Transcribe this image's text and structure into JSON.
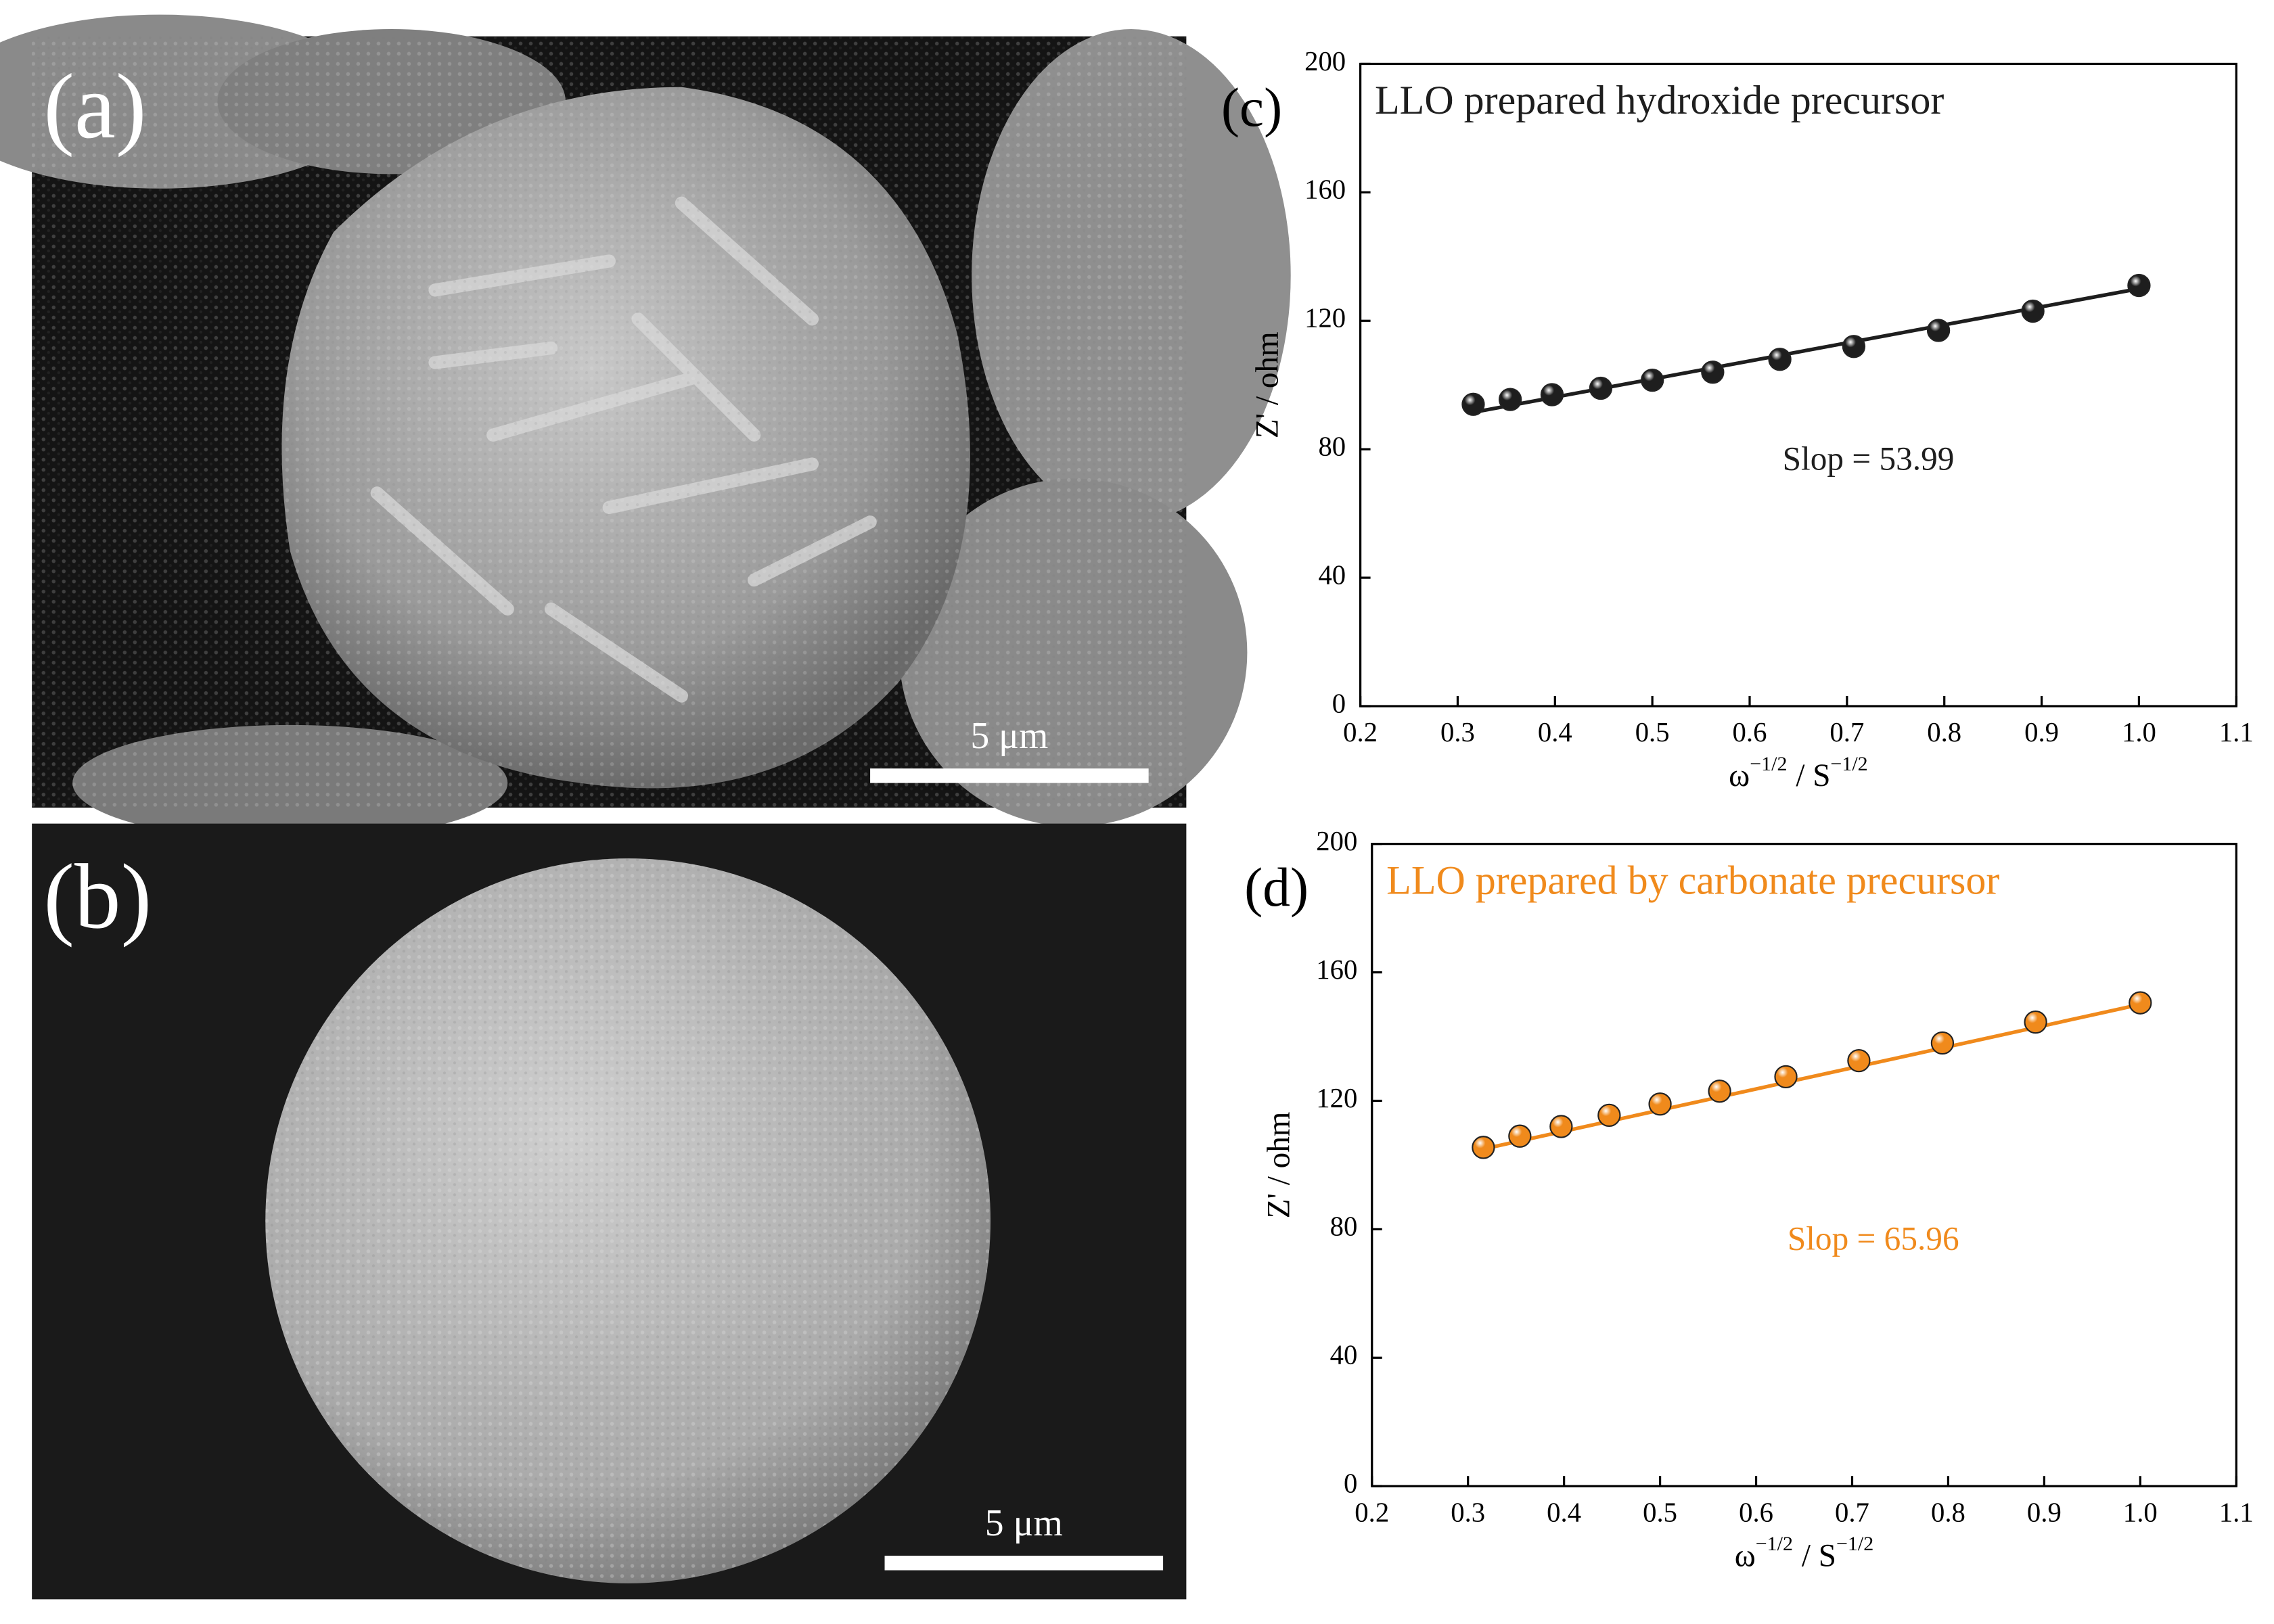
{
  "panels": [
    {
      "label": "(a)",
      "scale_bar": "5 μm"
    },
    {
      "label": "(b)",
      "scale_bar": "5 μm"
    }
  ],
  "chart_data": [
    {
      "type": "scatter",
      "panel_label": "(c)",
      "title": "LLO prepared hydroxide precursor",
      "color": "#1e1e1e",
      "ylabel": "Z' / ohm",
      "xlabel_parts": [
        "ω",
        "−1/2",
        "/  S",
        "−1/2"
      ],
      "x": [
        0.316,
        0.354,
        0.397,
        0.447,
        0.5,
        0.562,
        0.631,
        0.707,
        0.794,
        0.891,
        1.0
      ],
      "values": [
        94,
        95.5,
        97,
        99,
        101.5,
        104,
        108,
        112,
        117,
        123,
        131
      ],
      "fit": {
        "x": [
          0.316,
          1.0
        ],
        "values": [
          91.5,
          130
        ]
      },
      "annotation": "Slop = 53.99",
      "xlim": [
        0.2,
        1.1
      ],
      "xticks": [
        0.2,
        0.3,
        0.4,
        0.5,
        0.6,
        0.7,
        0.8,
        0.9,
        {
          "value": 1.0,
          "label": "1.0"
        },
        1.1
      ],
      "ylim": [
        0,
        200
      ],
      "yticks": [
        0,
        40,
        80,
        120,
        160,
        200
      ]
    },
    {
      "type": "scatter",
      "panel_label": "(d)",
      "title": "LLO prepared by carbonate precursor",
      "color": "#f08a1c",
      "ylabel": "Z' / ohm",
      "xlabel_parts": [
        "ω",
        "−1/2",
        "/  S",
        "−1/2"
      ],
      "x": [
        0.316,
        0.354,
        0.397,
        0.447,
        0.5,
        0.562,
        0.631,
        0.707,
        0.794,
        0.891,
        1.0
      ],
      "values": [
        105.5,
        109,
        112,
        115.5,
        119,
        123,
        127.5,
        132.5,
        138,
        144.5,
        150.5
      ],
      "fit": {
        "x": [
          0.316,
          1.0
        ],
        "values": [
          105,
          150
        ]
      },
      "annotation": "Slop = 65.96",
      "xlim": [
        0.2,
        1.1
      ],
      "xticks": [
        0.2,
        0.3,
        0.4,
        0.5,
        0.6,
        0.7,
        0.8,
        0.9,
        {
          "value": 1.0,
          "label": "1.0"
        },
        1.1
      ],
      "ylim": [
        0,
        200
      ],
      "yticks": [
        0,
        40,
        80,
        120,
        160,
        200
      ]
    }
  ]
}
